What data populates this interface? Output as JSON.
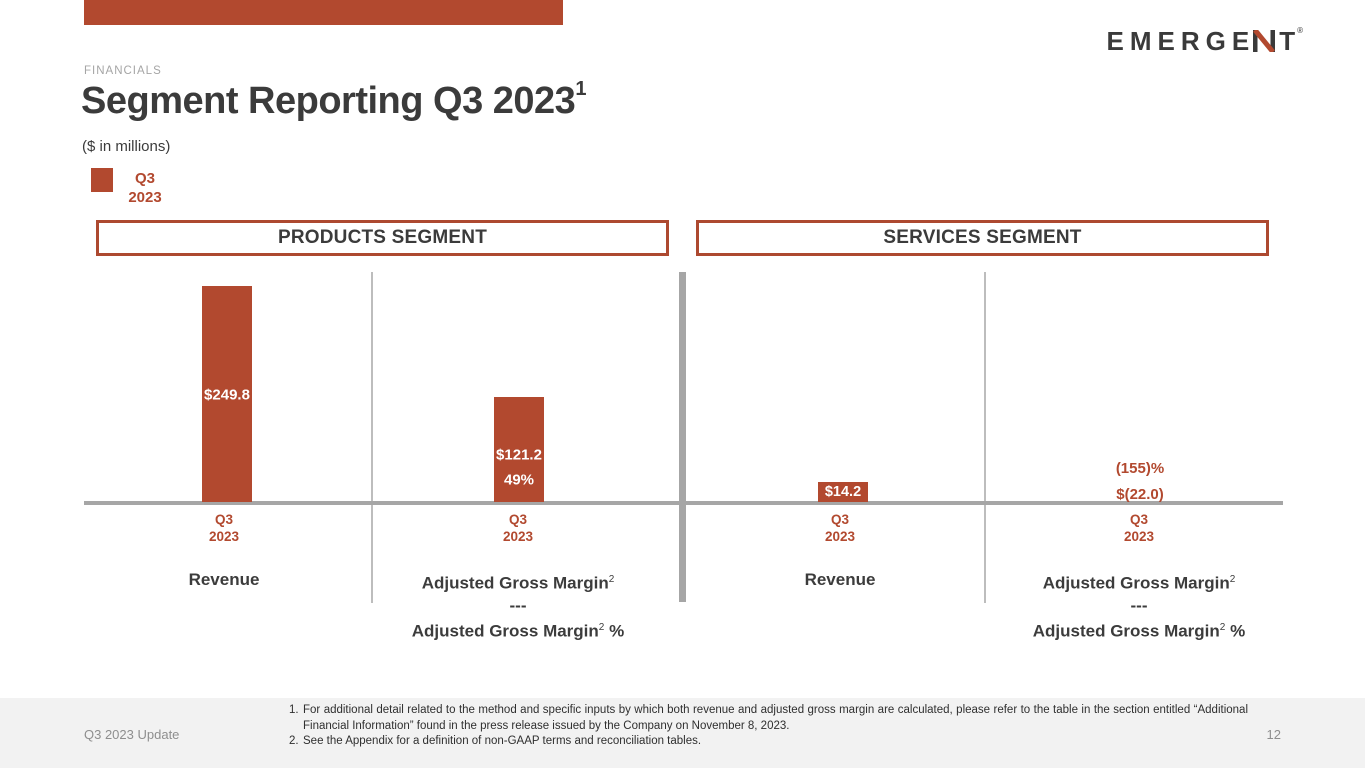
{
  "slide": {
    "eyebrow": "FINANCIALS",
    "title": "Segment Reporting Q3 2023",
    "title_footnote_ref": "1",
    "units_note": "($ in millions)",
    "footer_left": "Q3 2023 Update",
    "page_number": "12"
  },
  "logo": {
    "name": "EMERGENT",
    "part_before_n": "EMERGE",
    "part_after_n": "T",
    "registered_mark": "®"
  },
  "colors": {
    "accent_brick_red": "#b2492f",
    "axis_gray": "#a6a6a6",
    "divider_gray": "#bdbdbd",
    "text_dark": "#3a3a3a",
    "muted_gray": "#8e8e8e",
    "footer_band_bg": "#f2f2f2"
  },
  "legend": {
    "line1": "Q3",
    "line2": "2023",
    "swatch_color": "#b2492f"
  },
  "segment_headers": {
    "products": "PRODUCTS SEGMENT",
    "services": "SERVICES SEGMENT"
  },
  "category_labels": {
    "revenue": "Revenue",
    "adjusted_gross_margin": "Adjusted Gross Margin",
    "footnote_sup": "2",
    "separator": "---",
    "percent_suffix": "%"
  },
  "tick": {
    "line1": "Q3",
    "line2": "2023"
  },
  "chart_data": [
    {
      "type": "bar",
      "title": "PRODUCTS SEGMENT",
      "unit": "$ in millions",
      "categories": [
        "Revenue",
        "Adjusted Gross Margin / Adjusted Gross Margin %"
      ],
      "x_tick_labels": [
        "Q3 2023",
        "Q3 2023"
      ],
      "series": [
        {
          "name": "Q3 2023",
          "values": [
            249.8,
            121.2
          ]
        }
      ],
      "value_labels": [
        "$249.8",
        "$121.2"
      ],
      "percent_labels": [
        null,
        "49%"
      ],
      "ylim": [
        0,
        290
      ],
      "legend_position": "top-left",
      "grid": false
    },
    {
      "type": "bar",
      "title": "SERVICES SEGMENT",
      "unit": "$ in millions",
      "categories": [
        "Revenue",
        "Adjusted Gross Margin / Adjusted Gross Margin %"
      ],
      "x_tick_labels": [
        "Q3 2023",
        "Q3 2023"
      ],
      "series": [
        {
          "name": "Q3 2023",
          "values": [
            14.2,
            -22.0
          ]
        }
      ],
      "value_labels": [
        "$14.2",
        "$(22.0)"
      ],
      "percent_labels": [
        null,
        "(155)%"
      ],
      "ylim": [
        -30,
        290
      ],
      "legend_position": "top-left",
      "grid": false
    }
  ],
  "footnotes": [
    {
      "num": "1.",
      "text": "For additional detail related to the method and specific inputs by which both revenue and adjusted gross margin are calculated, please refer to the table in the section entitled “Additional Financial Information” found in the press release issued by the Company on November 8, 2023."
    },
    {
      "num": "2.",
      "text": "See the Appendix for a definition of non-GAAP terms and reconciliation tables."
    }
  ]
}
